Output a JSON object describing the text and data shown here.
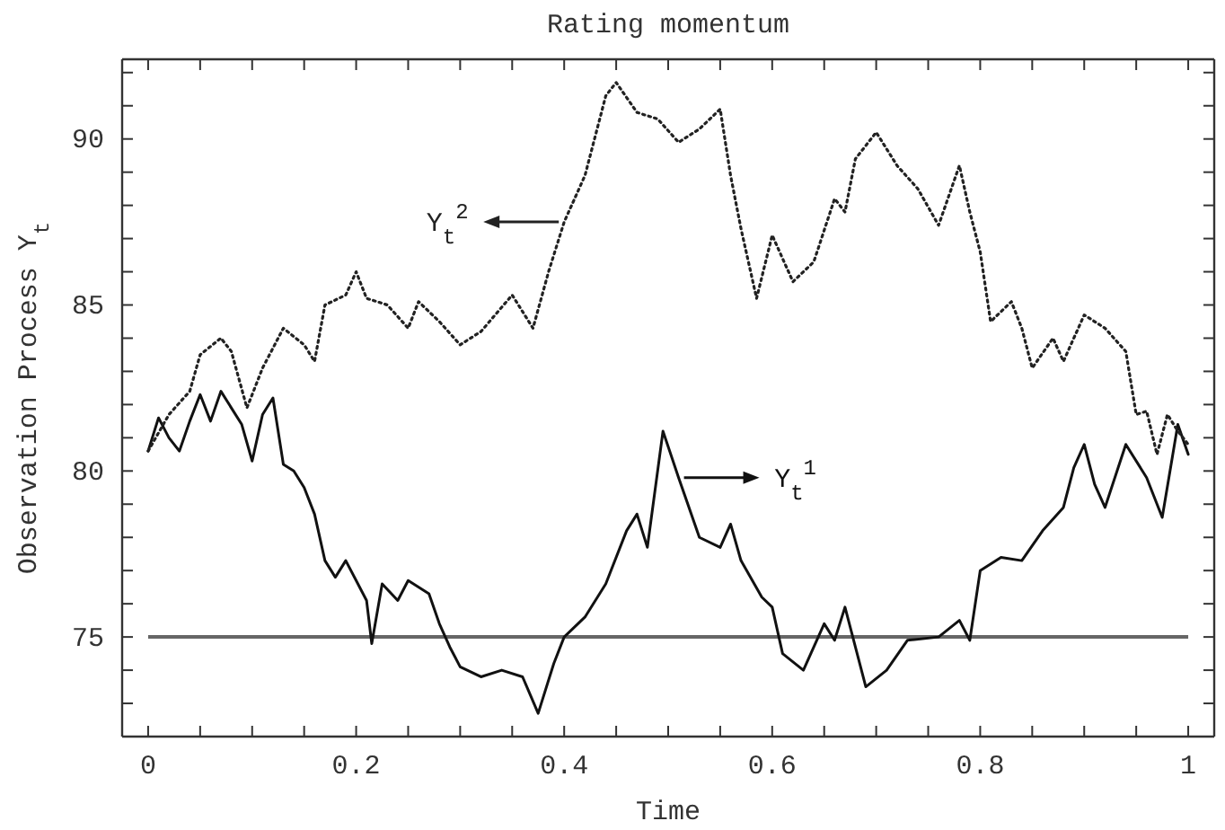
{
  "chart_data": {
    "type": "line",
    "title": "Rating momentum",
    "xlabel": "Time",
    "ylabel": "Observation Process Y$_{t}$",
    "xlim": [
      -0.025,
      1.025
    ],
    "ylim": [
      72,
      92.4
    ],
    "xticks": [
      0,
      {
        "value": 0.05,
        "label": null
      },
      {
        "value": 0.1,
        "label": null
      },
      {
        "value": 0.15,
        "label": null
      },
      {
        "value": 0.2,
        "label": "0.2"
      },
      {
        "value": 0.25,
        "label": null
      },
      {
        "value": 0.3,
        "label": null
      },
      {
        "value": 0.35,
        "label": null
      },
      {
        "value": 0.4,
        "label": "0.4"
      },
      {
        "value": 0.45,
        "label": null
      },
      {
        "value": 0.5,
        "label": null
      },
      {
        "value": 0.55,
        "label": null
      },
      {
        "value": 0.6,
        "label": "0.6"
      },
      {
        "value": 0.65,
        "label": null
      },
      {
        "value": 0.7,
        "label": null
      },
      {
        "value": 0.75,
        "label": null
      },
      {
        "value": 0.8,
        "label": "0.8"
      },
      {
        "value": 0.85,
        "label": null
      },
      {
        "value": 0.9,
        "label": null
      },
      {
        "value": 0.95,
        "label": null
      },
      1
    ],
    "yticks": [
      {
        "value": 73,
        "label": null
      },
      {
        "value": 74,
        "label": null
      },
      75,
      {
        "value": 76,
        "label": null
      },
      {
        "value": 77,
        "label": null
      },
      {
        "value": 78,
        "label": null
      },
      {
        "value": 79,
        "label": null
      },
      80,
      {
        "value": 81,
        "label": null
      },
      {
        "value": 82,
        "label": null
      },
      {
        "value": 83,
        "label": null
      },
      {
        "value": 84,
        "label": null
      },
      85,
      {
        "value": 86,
        "label": null
      },
      {
        "value": 87,
        "label": null
      },
      {
        "value": 88,
        "label": null
      },
      {
        "value": 89,
        "label": null
      },
      90,
      {
        "value": 91,
        "label": null
      },
      {
        "value": 92,
        "label": null
      }
    ],
    "grid": false,
    "marker": "none",
    "series": [
      {
        "name": "Y$_{t}$$^{1}$",
        "color": "#111111",
        "line_style": "solid",
        "x": [
          0,
          0.01,
          0.02,
          0.03,
          0.04,
          0.05,
          0.06,
          0.07,
          0.08,
          0.09,
          0.1,
          0.11,
          0.12,
          0.13,
          0.14,
          0.15,
          0.16,
          0.17,
          0.18,
          0.19,
          0.2,
          0.21,
          0.215,
          0.225,
          0.24,
          0.25,
          0.27,
          0.28,
          0.29,
          0.3,
          0.32,
          0.34,
          0.36,
          0.375,
          0.39,
          0.4,
          0.42,
          0.44,
          0.46,
          0.47,
          0.48,
          0.495,
          0.51,
          0.53,
          0.55,
          0.56,
          0.57,
          0.59,
          0.6,
          0.61,
          0.63,
          0.65,
          0.66,
          0.67,
          0.69,
          0.71,
          0.73,
          0.76,
          0.78,
          0.79,
          0.8,
          0.82,
          0.84,
          0.86,
          0.88,
          0.89,
          0.9,
          0.91,
          0.92,
          0.94,
          0.96,
          0.975,
          0.99,
          1
        ],
        "values": [
          80.6,
          81.6,
          81,
          80.6,
          81.5,
          82.3,
          81.5,
          82.4,
          81.9,
          81.4,
          80.3,
          81.7,
          82.2,
          80.2,
          80,
          79.5,
          78.7,
          77.3,
          76.8,
          77.3,
          76.7,
          76.1,
          74.8,
          76.6,
          76.1,
          76.7,
          76.3,
          75.4,
          74.7,
          74.1,
          73.8,
          74,
          73.8,
          72.7,
          74.2,
          75,
          75.6,
          76.6,
          78.2,
          78.7,
          77.7,
          81.2,
          79.8,
          78,
          77.7,
          78.4,
          77.3,
          76.2,
          75.9,
          74.5,
          74,
          75.4,
          74.9,
          75.9,
          73.5,
          74,
          74.9,
          75,
          75.5,
          74.9,
          77,
          77.4,
          77.3,
          78.2,
          78.9,
          80.1,
          80.8,
          79.6,
          78.9,
          80.8,
          79.8,
          78.6,
          81.4,
          80.5
        ]
      },
      {
        "name": "Y$_{t}$$^{2}$",
        "color": "#222222",
        "line_style": "dotted",
        "x": [
          0,
          0.02,
          0.04,
          0.05,
          0.07,
          0.08,
          0.095,
          0.11,
          0.13,
          0.15,
          0.16,
          0.17,
          0.19,
          0.2,
          0.21,
          0.23,
          0.25,
          0.26,
          0.28,
          0.3,
          0.32,
          0.35,
          0.37,
          0.385,
          0.4,
          0.42,
          0.44,
          0.45,
          0.47,
          0.49,
          0.51,
          0.53,
          0.55,
          0.56,
          0.57,
          0.585,
          0.6,
          0.62,
          0.64,
          0.66,
          0.67,
          0.68,
          0.7,
          0.72,
          0.74,
          0.76,
          0.78,
          0.79,
          0.8,
          0.81,
          0.83,
          0.84,
          0.85,
          0.87,
          0.88,
          0.9,
          0.92,
          0.94,
          0.95,
          0.96,
          0.97,
          0.98,
          0.99,
          1
        ],
        "values": [
          80.6,
          81.7,
          82.4,
          83.5,
          84,
          83.6,
          81.9,
          83.1,
          84.3,
          83.8,
          83.3,
          85,
          85.3,
          86,
          85.2,
          85,
          84.3,
          85.1,
          84.5,
          83.8,
          84.2,
          85.3,
          84.3,
          86,
          87.5,
          88.9,
          91.3,
          91.7,
          90.8,
          90.6,
          89.9,
          90.3,
          90.9,
          88.9,
          87.3,
          85.2,
          87.1,
          85.7,
          86.3,
          88.2,
          87.8,
          89.4,
          90.2,
          89.2,
          88.5,
          87.4,
          89.2,
          87.8,
          86.6,
          84.5,
          85.1,
          84.3,
          83.1,
          84,
          83.3,
          84.7,
          84.3,
          83.6,
          81.7,
          81.8,
          80.5,
          81.7,
          81.2,
          80.8
        ]
      }
    ],
    "ref_lines": [
      {
        "axis": "y",
        "value": 75,
        "color": "#666666"
      }
    ]
  }
}
